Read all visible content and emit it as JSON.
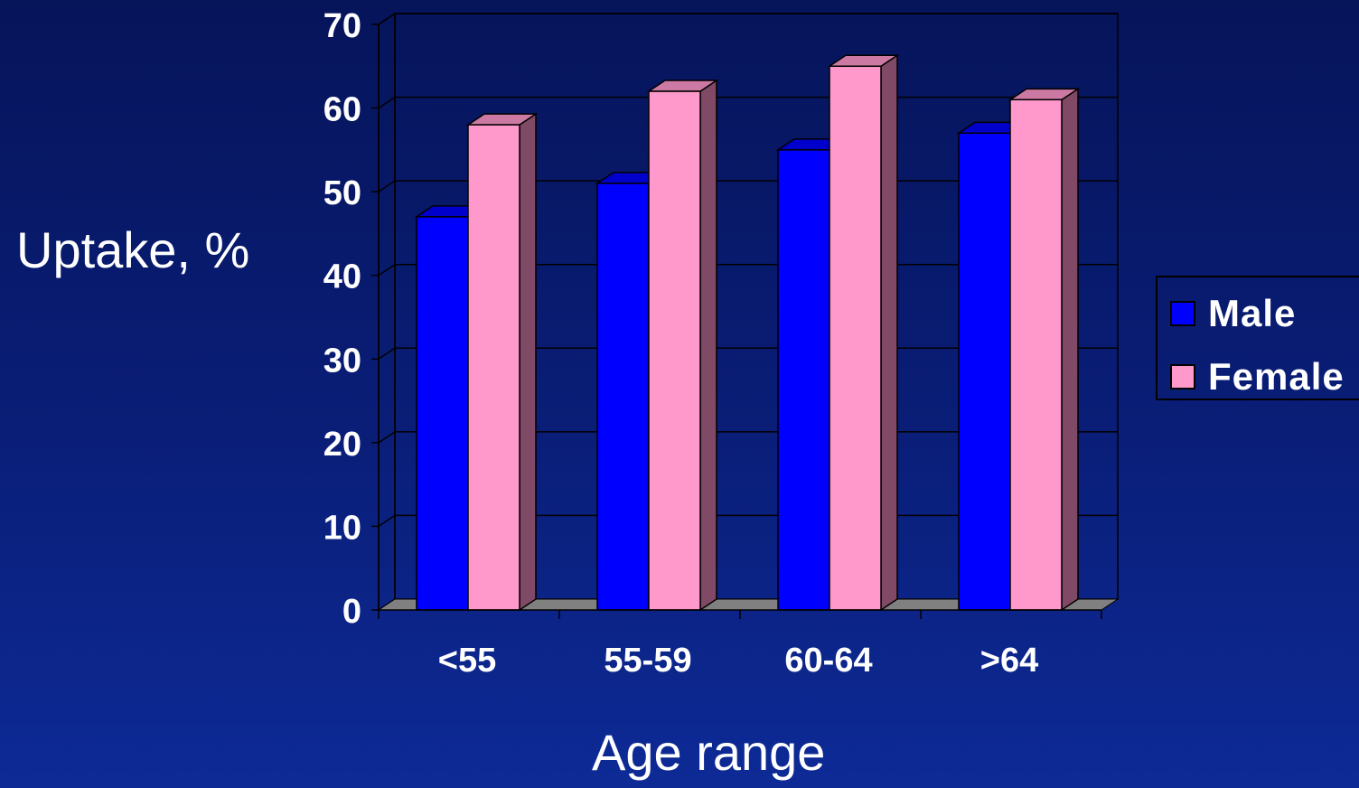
{
  "chart_data": {
    "type": "bar",
    "categories": [
      "<55",
      "55-59",
      "60-64",
      ">64"
    ],
    "series": [
      {
        "name": "Male",
        "values": [
          47,
          51,
          55,
          57
        ],
        "color": "#0000ff",
        "side_color": "#00008b"
      },
      {
        "name": "Female",
        "values": [
          58,
          62,
          65,
          61
        ],
        "color": "#ff99cc",
        "side_color": "#804a66"
      }
    ],
    "title": "",
    "xlabel": "Age range",
    "ylabel": "Uptake, %",
    "ylim": [
      0,
      70
    ],
    "yticks": [
      0,
      10,
      20,
      30,
      40,
      50,
      60,
      70
    ],
    "grid": true,
    "legend_position": "right",
    "three_d": true
  }
}
